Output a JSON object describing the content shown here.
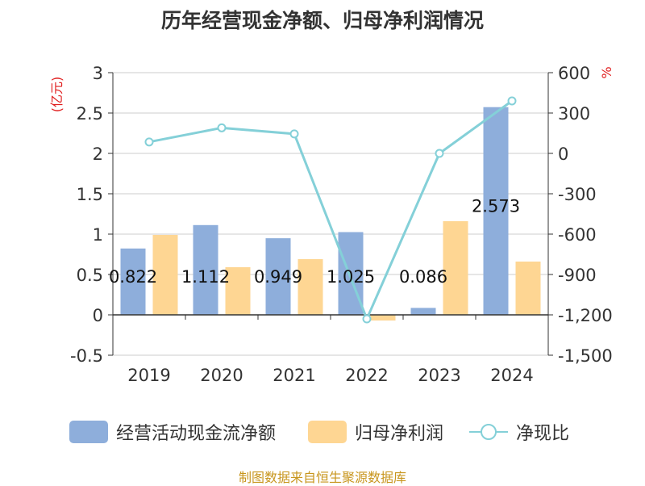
{
  "chart_data": {
    "type": "bar",
    "title": "历年经营现金净额、归母净利润情况",
    "categories": [
      "2019",
      "2020",
      "2021",
      "2022",
      "2023",
      "2024"
    ],
    "series": [
      {
        "name": "经营活动现金流净额",
        "type": "bar",
        "axis": "left",
        "values": [
          0.822,
          1.112,
          0.949,
          1.025,
          0.086,
          2.573
        ],
        "data_labels": [
          "0.822",
          "1.112",
          "0.949",
          "1.025",
          "0.086",
          "2.573"
        ]
      },
      {
        "name": "归母净利润",
        "type": "bar",
        "axis": "left",
        "values": [
          0.99,
          0.59,
          0.69,
          -0.07,
          1.16,
          0.66
        ]
      },
      {
        "name": "净现比",
        "type": "line",
        "axis": "right",
        "values": [
          85,
          190,
          145,
          -1230,
          0,
          390
        ]
      }
    ],
    "left_axis": {
      "label": "(亿元)",
      "min": -0.5,
      "max": 3,
      "ticks": [
        "3",
        "2.5",
        "2",
        "1.5",
        "1",
        "0.5",
        "0",
        "-0.5"
      ],
      "tick_values": [
        3,
        2.5,
        2,
        1.5,
        1,
        0.5,
        0,
        -0.5
      ]
    },
    "right_axis": {
      "label": "%",
      "min": -1500,
      "max": 600,
      "ticks": [
        "600",
        "300",
        "0",
        "-300",
        "-600",
        "-900",
        "-1,200",
        "-1,500"
      ],
      "tick_values": [
        600,
        300,
        0,
        -300,
        -600,
        -900,
        -1200,
        -1500
      ]
    },
    "grid": true,
    "legend_position": "bottom"
  },
  "colors": {
    "bar_cash": "#8eaedb",
    "bar_profit": "#fed693",
    "line_ratio": "#84d0d8",
    "axis_unit": "#e02020",
    "source": "#c8961e"
  },
  "legend": {
    "items": [
      {
        "label": "经营活动现金流净额",
        "icon": "bar-swatch"
      },
      {
        "label": "归母净利润",
        "icon": "bar-swatch"
      },
      {
        "label": "净现比",
        "icon": "line-marker"
      }
    ]
  },
  "source": "制图数据来自恒生聚源数据库"
}
